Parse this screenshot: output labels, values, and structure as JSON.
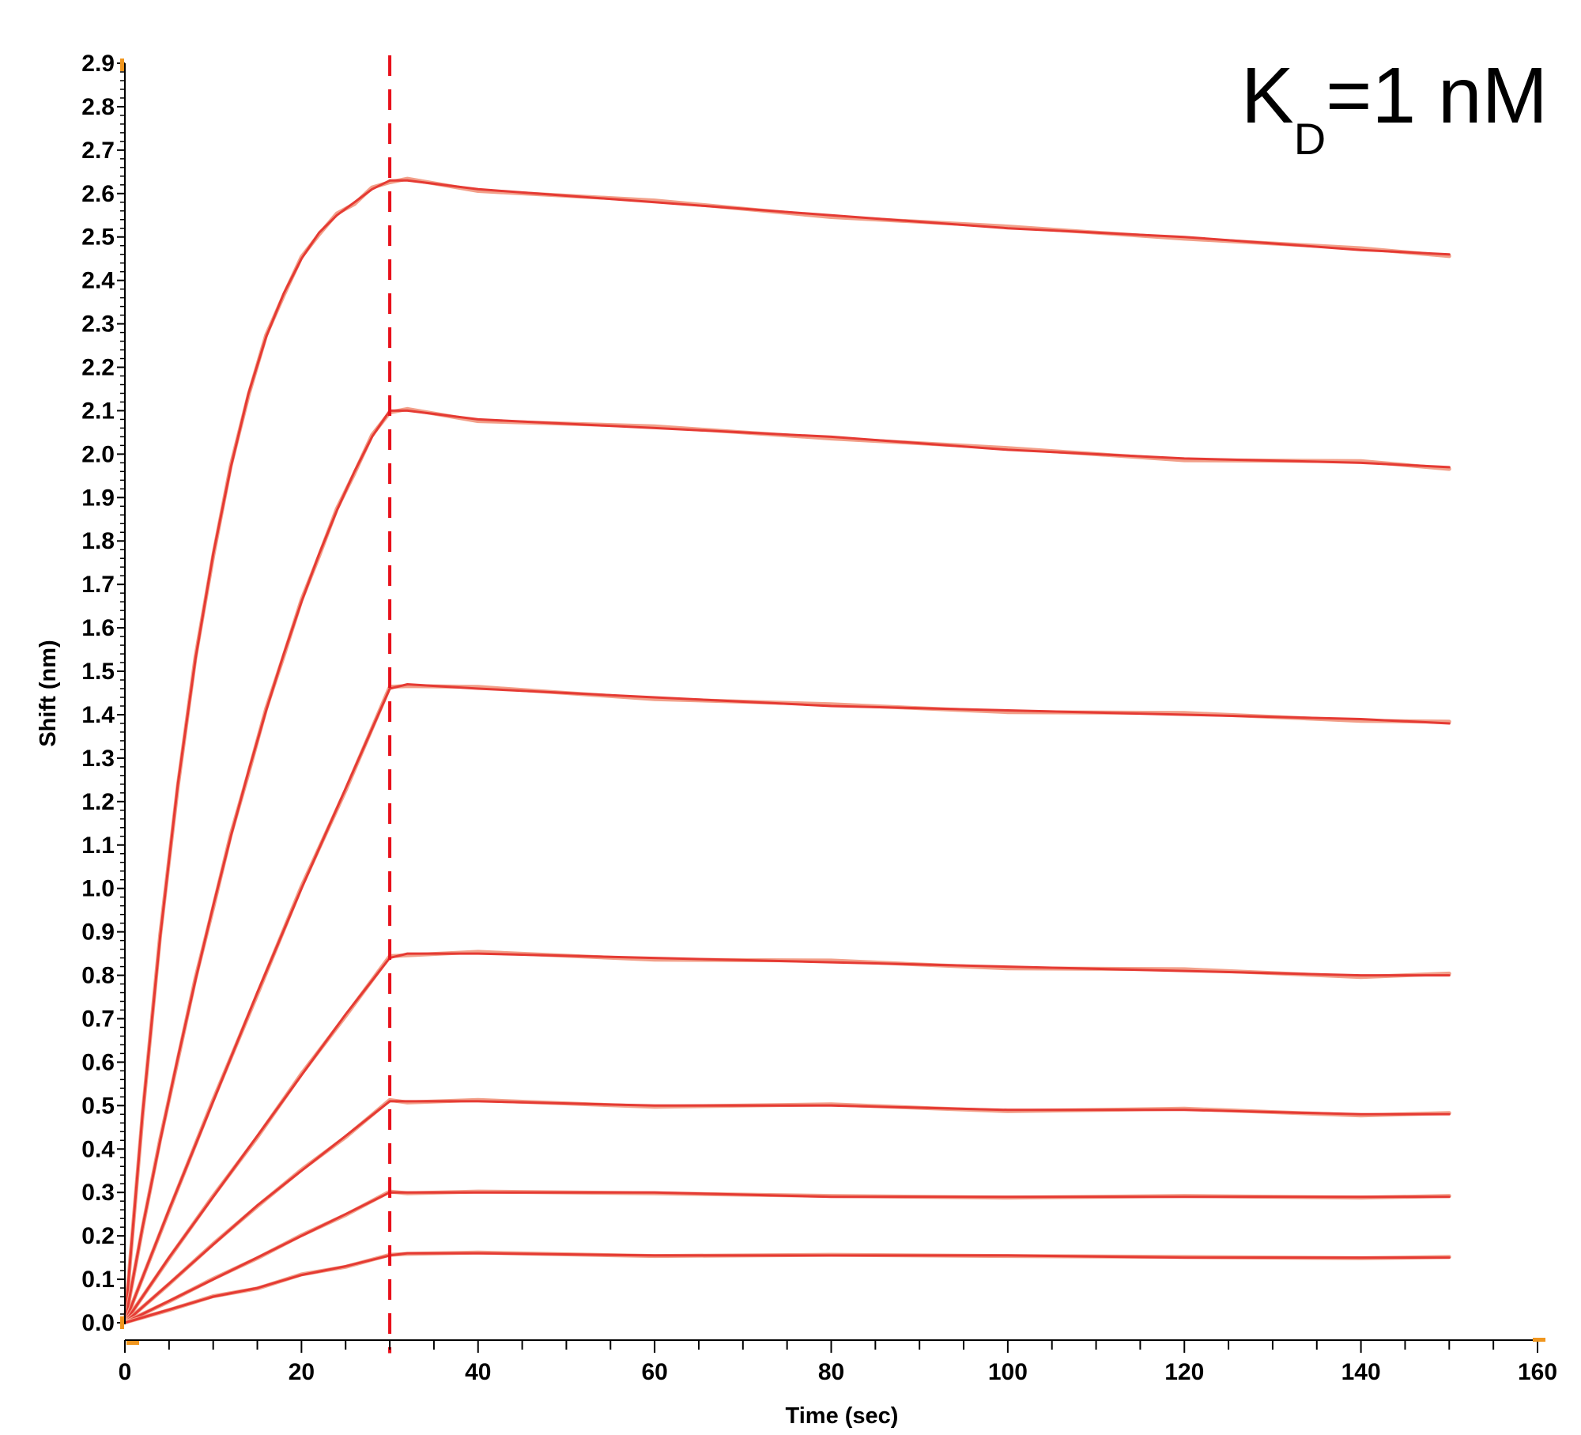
{
  "chart_data": {
    "type": "line",
    "title": "",
    "xlabel": "Time (sec)",
    "ylabel": "Shift (nm)",
    "xlim": [
      0,
      160
    ],
    "ylim": [
      0,
      2.9
    ],
    "x_ticks": [
      0,
      20,
      40,
      60,
      80,
      100,
      120,
      140,
      160
    ],
    "x_tick_labels": [
      "0",
      "20",
      "40",
      "60",
      "80",
      "100",
      "120",
      "140",
      "160"
    ],
    "y_ticks": [
      0.0,
      0.1,
      0.2,
      0.3,
      0.4,
      0.5,
      0.6,
      0.7,
      0.8,
      0.9,
      1.0,
      1.1,
      1.2,
      1.3,
      1.4,
      1.5,
      1.6,
      1.7,
      1.8,
      1.9,
      2.0,
      2.1,
      2.2,
      2.3,
      2.4,
      2.5,
      2.6,
      2.7,
      2.8,
      2.9
    ],
    "y_tick_labels": [
      "0.0",
      "0.1",
      "0.2",
      "0.3",
      "0.4",
      "0.5",
      "0.6",
      "0.7",
      "0.8",
      "0.9",
      "1.0",
      "1.1",
      "1.2",
      "1.3",
      "1.4",
      "1.5",
      "1.6",
      "1.7",
      "1.8",
      "1.9",
      "2.0",
      "2.1",
      "2.2",
      "2.3",
      "2.4",
      "2.5",
      "2.6",
      "2.7",
      "2.8",
      "2.9"
    ],
    "grid": false,
    "legend": "none",
    "annotation": {
      "main": "K",
      "subscript": "D",
      "rest": "=1 nM"
    },
    "dissociation_start": 30,
    "vertical_line": {
      "x": 30,
      "style": "dashed",
      "color": "#e8101a"
    },
    "colors": {
      "fit": "#e53a33",
      "raw": "#f2a08a",
      "axis": "#000000",
      "marker": "#f0961e"
    },
    "series": [
      {
        "association": [
          [
            0,
            0.0
          ],
          [
            2,
            0.48
          ],
          [
            4,
            0.89
          ],
          [
            6,
            1.24
          ],
          [
            8,
            1.53
          ],
          [
            10,
            1.77
          ],
          [
            12,
            1.97
          ],
          [
            14,
            2.14
          ],
          [
            16,
            2.27
          ],
          [
            18,
            2.37
          ],
          [
            20,
            2.45
          ],
          [
            22,
            2.51
          ],
          [
            24,
            2.55
          ],
          [
            26,
            2.58
          ],
          [
            28,
            2.61
          ],
          [
            30,
            2.63
          ]
        ],
        "dissociation": [
          [
            30,
            2.63
          ],
          [
            32,
            2.63
          ],
          [
            40,
            2.61
          ],
          [
            60,
            2.58
          ],
          [
            80,
            2.55
          ],
          [
            100,
            2.52
          ],
          [
            120,
            2.5
          ],
          [
            140,
            2.47
          ],
          [
            150,
            2.46
          ]
        ]
      },
      {
        "association": [
          [
            0,
            0.0
          ],
          [
            2,
            0.22
          ],
          [
            4,
            0.42
          ],
          [
            6,
            0.61
          ],
          [
            8,
            0.79
          ],
          [
            10,
            0.96
          ],
          [
            12,
            1.12
          ],
          [
            14,
            1.27
          ],
          [
            16,
            1.41
          ],
          [
            18,
            1.54
          ],
          [
            20,
            1.66
          ],
          [
            22,
            1.77
          ],
          [
            24,
            1.87
          ],
          [
            26,
            1.96
          ],
          [
            28,
            2.04
          ],
          [
            30,
            2.1
          ]
        ],
        "dissociation": [
          [
            30,
            2.1
          ],
          [
            32,
            2.1
          ],
          [
            40,
            2.08
          ],
          [
            60,
            2.06
          ],
          [
            80,
            2.04
          ],
          [
            100,
            2.01
          ],
          [
            120,
            1.99
          ],
          [
            140,
            1.98
          ],
          [
            150,
            1.97
          ]
        ]
      },
      {
        "association": [
          [
            0,
            0.0
          ],
          [
            5,
            0.26
          ],
          [
            10,
            0.51
          ],
          [
            15,
            0.76
          ],
          [
            20,
            1.0
          ],
          [
            25,
            1.23
          ],
          [
            30,
            1.46
          ]
        ],
        "dissociation": [
          [
            30,
            1.46
          ],
          [
            32,
            1.47
          ],
          [
            40,
            1.46
          ],
          [
            60,
            1.44
          ],
          [
            80,
            1.42
          ],
          [
            100,
            1.41
          ],
          [
            120,
            1.4
          ],
          [
            140,
            1.39
          ],
          [
            150,
            1.38
          ]
        ]
      },
      {
        "association": [
          [
            0,
            0.0
          ],
          [
            5,
            0.15
          ],
          [
            10,
            0.29
          ],
          [
            15,
            0.43
          ],
          [
            20,
            0.57
          ],
          [
            25,
            0.71
          ],
          [
            30,
            0.84
          ]
        ],
        "dissociation": [
          [
            30,
            0.84
          ],
          [
            32,
            0.85
          ],
          [
            40,
            0.85
          ],
          [
            60,
            0.84
          ],
          [
            80,
            0.83
          ],
          [
            100,
            0.82
          ],
          [
            120,
            0.81
          ],
          [
            140,
            0.8
          ],
          [
            150,
            0.8
          ]
        ]
      },
      {
        "association": [
          [
            0,
            0.0
          ],
          [
            5,
            0.09
          ],
          [
            10,
            0.18
          ],
          [
            15,
            0.27
          ],
          [
            20,
            0.35
          ],
          [
            25,
            0.43
          ],
          [
            30,
            0.51
          ]
        ],
        "dissociation": [
          [
            30,
            0.51
          ],
          [
            32,
            0.51
          ],
          [
            40,
            0.51
          ],
          [
            60,
            0.5
          ],
          [
            80,
            0.5
          ],
          [
            100,
            0.49
          ],
          [
            120,
            0.49
          ],
          [
            140,
            0.48
          ],
          [
            150,
            0.48
          ]
        ]
      },
      {
        "association": [
          [
            0,
            0.0
          ],
          [
            5,
            0.05
          ],
          [
            10,
            0.1
          ],
          [
            15,
            0.15
          ],
          [
            20,
            0.2
          ],
          [
            25,
            0.25
          ],
          [
            30,
            0.3
          ]
        ],
        "dissociation": [
          [
            30,
            0.3
          ],
          [
            32,
            0.3
          ],
          [
            40,
            0.3
          ],
          [
            60,
            0.3
          ],
          [
            80,
            0.29
          ],
          [
            100,
            0.29
          ],
          [
            120,
            0.29
          ],
          [
            140,
            0.29
          ],
          [
            150,
            0.29
          ]
        ]
      },
      {
        "association": [
          [
            0,
            0.0
          ],
          [
            5,
            0.03
          ],
          [
            10,
            0.06
          ],
          [
            15,
            0.08
          ],
          [
            20,
            0.11
          ],
          [
            25,
            0.13
          ],
          [
            30,
            0.155
          ]
        ],
        "dissociation": [
          [
            30,
            0.155
          ],
          [
            32,
            0.16
          ],
          [
            40,
            0.16
          ],
          [
            60,
            0.155
          ],
          [
            80,
            0.155
          ],
          [
            100,
            0.155
          ],
          [
            120,
            0.15
          ],
          [
            140,
            0.15
          ],
          [
            150,
            0.15
          ]
        ]
      }
    ]
  }
}
